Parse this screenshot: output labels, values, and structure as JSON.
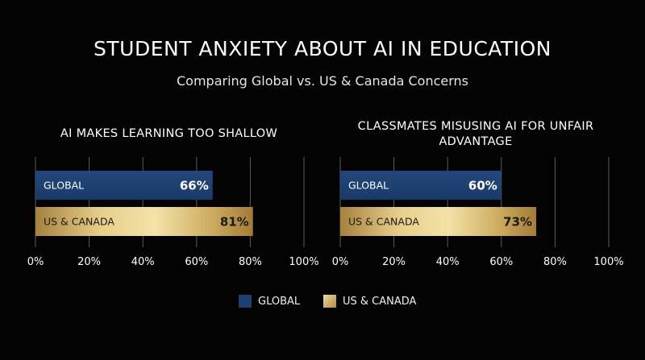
{
  "title": "STUDENT ANXIETY ABOUT AI IN EDUCATION",
  "subtitle": "Comparing Global vs. US & Canada Concerns",
  "colors": {
    "global": "#1d3f72",
    "us_canada_light": "#e5cc86",
    "us_canada_dark": "#b1873e",
    "grid": "#5c5c5c",
    "text": "#ffffff"
  },
  "legend": {
    "global_label": "GLOBAL",
    "us_canada_label": "US & CANADA"
  },
  "chart_data": [
    {
      "type": "bar",
      "orientation": "horizontal",
      "title": "AI MAKES LEARNING TOO SHALLOW",
      "categories": [
        "GLOBAL",
        "US & CANADA"
      ],
      "values": [
        66,
        81
      ],
      "value_labels": [
        "66%",
        "81%"
      ],
      "xlim": [
        0,
        100
      ],
      "xticks": [
        "0%",
        "20%",
        "40%",
        "60%",
        "80%",
        "100%"
      ],
      "grid": true
    },
    {
      "type": "bar",
      "orientation": "horizontal",
      "title": "CLASSMATES MISUSING AI FOR UNFAIR ADVANTAGE",
      "categories": [
        "GLOBAL",
        "US & CANADA"
      ],
      "values": [
        60,
        73
      ],
      "value_labels": [
        "60%",
        "73%"
      ],
      "xlim": [
        0,
        100
      ],
      "xticks": [
        "0%",
        "20%",
        "40%",
        "60%",
        "80%",
        "100%"
      ],
      "grid": true
    }
  ]
}
